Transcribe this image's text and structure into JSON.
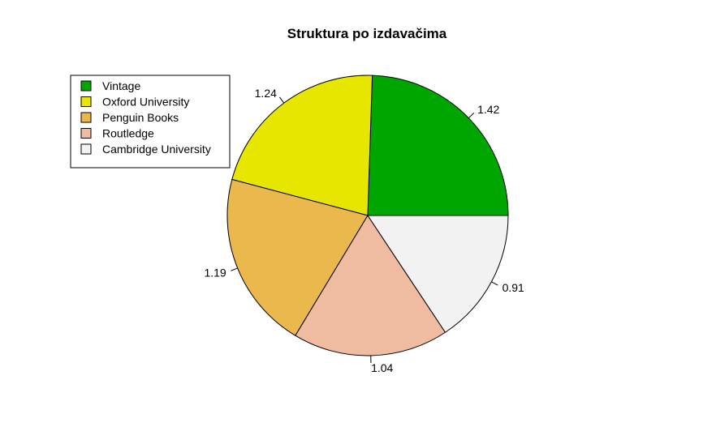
{
  "chart_data": {
    "type": "pie",
    "title": "Struktura po izdavačima",
    "categories": [
      "Vintage",
      "Oxford University",
      "Penguin Books",
      "Routledge",
      "Cambridge University"
    ],
    "values": [
      1.42,
      1.24,
      1.19,
      1.04,
      0.91
    ],
    "labels": [
      "1.42",
      "1.24",
      "1.19",
      "1.04",
      "0.91"
    ],
    "colors": [
      "#00A600",
      "#E6E600",
      "#EBB84D",
      "#EFBBA1",
      "#F2F2F2"
    ],
    "legend_position": "top-left",
    "start": "right",
    "direction": "counterclockwise"
  }
}
